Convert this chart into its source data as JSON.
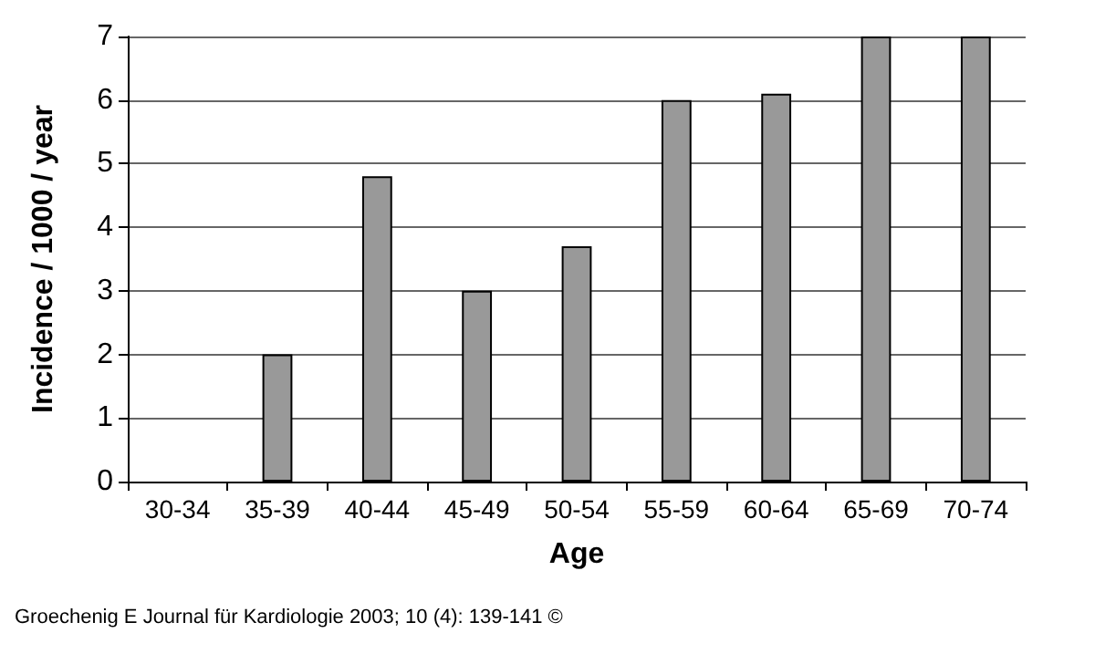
{
  "chart_data": {
    "type": "bar",
    "xlabel": "Age",
    "ylabel": "Incidence / 1000 / year",
    "categories": [
      "30-34",
      "35-39",
      "40-44",
      "45-49",
      "50-54",
      "55-59",
      "60-64",
      "65-69",
      "70-74"
    ],
    "values": [
      0,
      2,
      4.8,
      3,
      3.7,
      6,
      6.1,
      7,
      7
    ],
    "color": "#999999",
    "ylim": [
      0,
      7
    ],
    "yticks": [
      0,
      1,
      2,
      3,
      4,
      5,
      6,
      7
    ],
    "grid": "y",
    "annotations": [
      "Groechenig E Journal für Kardiologie 2003; 10 (4): 139-141 ©"
    ]
  }
}
